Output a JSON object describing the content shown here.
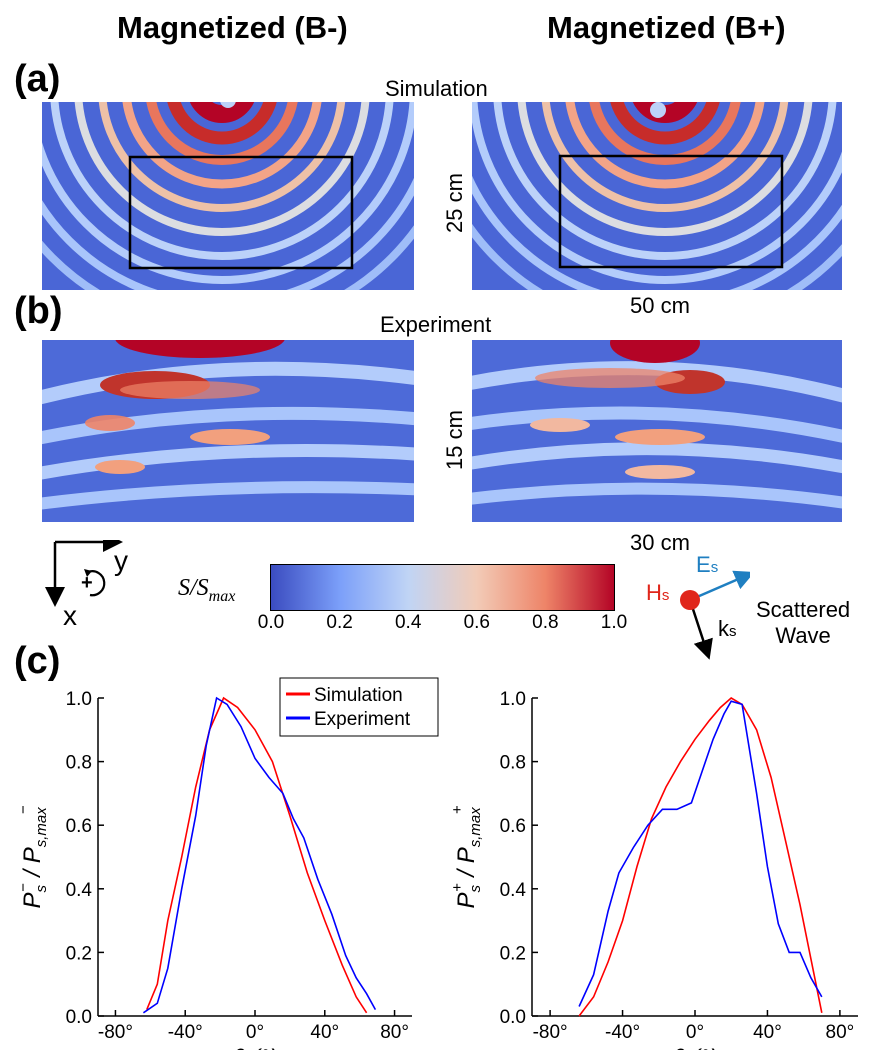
{
  "figure": {
    "column_titles": [
      "Magnetized (B-)",
      "Magnetized (B+)"
    ],
    "panel_labels": {
      "a": "(a)",
      "b": "(b)",
      "c": "(c)"
    },
    "row_a_caption": "Simulation",
    "row_b_caption": "Experiment",
    "dim_a_height": "25 cm",
    "dim_a_width": "50 cm",
    "dim_b_height": "15 cm",
    "dim_b_width": "30 cm",
    "axes_glyph": {
      "x": "x",
      "y": "y",
      "rotation": "+"
    },
    "wave_diagram": {
      "H": "H",
      "H_sub": "s",
      "E": "E",
      "E_sub": "s",
      "k": "k",
      "k_sub": "s",
      "line1": "Scattered",
      "line2": "Wave",
      "colors": {
        "H": "#e0261b",
        "E": "#1f7fc1",
        "k": "#000000"
      }
    },
    "colorbar": {
      "label_main": "S/S",
      "label_sub": "max",
      "ticks": [
        "0.0",
        "0.2",
        "0.4",
        "0.6",
        "0.8",
        "1.0"
      ],
      "colors": [
        "#3b4cc0",
        "#7b9ff9",
        "#c0d4f5",
        "#f2cbb7",
        "#ee8468",
        "#b40426"
      ]
    }
  },
  "chart_data": [
    {
      "type": "line",
      "xlabel": "θ (°)",
      "ylabel": "P_s^- / P_s,max^-",
      "xlim": [
        -90,
        90
      ],
      "ylim": [
        0,
        1.0
      ],
      "xticks": [
        "-80°",
        "-40°",
        "0°",
        "40°",
        "80°"
      ],
      "xtick_values": [
        -80,
        -40,
        0,
        40,
        80
      ],
      "yticks": [
        "0.0",
        "0.2",
        "0.4",
        "0.6",
        "0.8",
        "1.0"
      ],
      "ytick_values": [
        0,
        0.2,
        0.4,
        0.6,
        0.8,
        1.0
      ],
      "legend": {
        "position": "top-right"
      },
      "series": [
        {
          "name": "Simulation",
          "color": "#ff0000",
          "x": [
            -62,
            -56,
            -50,
            -42,
            -34,
            -26,
            -18,
            -10,
            0,
            10,
            20,
            30,
            40,
            50,
            58,
            64
          ],
          "y": [
            0.02,
            0.1,
            0.3,
            0.5,
            0.72,
            0.9,
            1.0,
            0.97,
            0.9,
            0.8,
            0.63,
            0.45,
            0.3,
            0.16,
            0.06,
            0.01
          ]
        },
        {
          "name": "Experiment",
          "color": "#0000ff",
          "x": [
            -64,
            -56,
            -50,
            -42,
            -34,
            -28,
            -22,
            -16,
            -8,
            0,
            8,
            16,
            22,
            28,
            36,
            44,
            52,
            58,
            64,
            69
          ],
          "y": [
            0.01,
            0.04,
            0.15,
            0.4,
            0.63,
            0.85,
            1.0,
            0.98,
            0.91,
            0.81,
            0.75,
            0.7,
            0.62,
            0.56,
            0.43,
            0.32,
            0.19,
            0.12,
            0.07,
            0.02
          ]
        }
      ]
    },
    {
      "type": "line",
      "xlabel": "θ (°)",
      "ylabel": "P_s^+ / P_s,max^+",
      "xlim": [
        -90,
        90
      ],
      "ylim": [
        0,
        1.0
      ],
      "xticks": [
        "-80°",
        "-40°",
        "0°",
        "40°",
        "80°"
      ],
      "xtick_values": [
        -80,
        -40,
        0,
        40,
        80
      ],
      "yticks": [
        "0.0",
        "0.2",
        "0.4",
        "0.6",
        "0.8",
        "1.0"
      ],
      "ytick_values": [
        0,
        0.2,
        0.4,
        0.6,
        0.8,
        1.0
      ],
      "series": [
        {
          "name": "Simulation",
          "color": "#ff0000",
          "x": [
            -64,
            -56,
            -48,
            -40,
            -32,
            -24,
            -16,
            -8,
            0,
            8,
            14,
            20,
            26,
            34,
            42,
            50,
            58,
            64,
            70
          ],
          "y": [
            0.0,
            0.06,
            0.17,
            0.3,
            0.47,
            0.62,
            0.72,
            0.8,
            0.87,
            0.93,
            0.97,
            1.0,
            0.98,
            0.9,
            0.75,
            0.55,
            0.35,
            0.18,
            0.01
          ]
        },
        {
          "name": "Experiment",
          "color": "#0000ff",
          "x": [
            -64,
            -56,
            -48,
            -42,
            -34,
            -26,
            -18,
            -10,
            -2,
            4,
            10,
            16,
            20,
            26,
            34,
            40,
            46,
            52,
            58,
            64,
            70
          ],
          "y": [
            0.03,
            0.13,
            0.33,
            0.45,
            0.53,
            0.6,
            0.65,
            0.65,
            0.67,
            0.77,
            0.87,
            0.95,
            0.99,
            0.98,
            0.7,
            0.47,
            0.29,
            0.2,
            0.2,
            0.12,
            0.06
          ]
        }
      ]
    }
  ]
}
